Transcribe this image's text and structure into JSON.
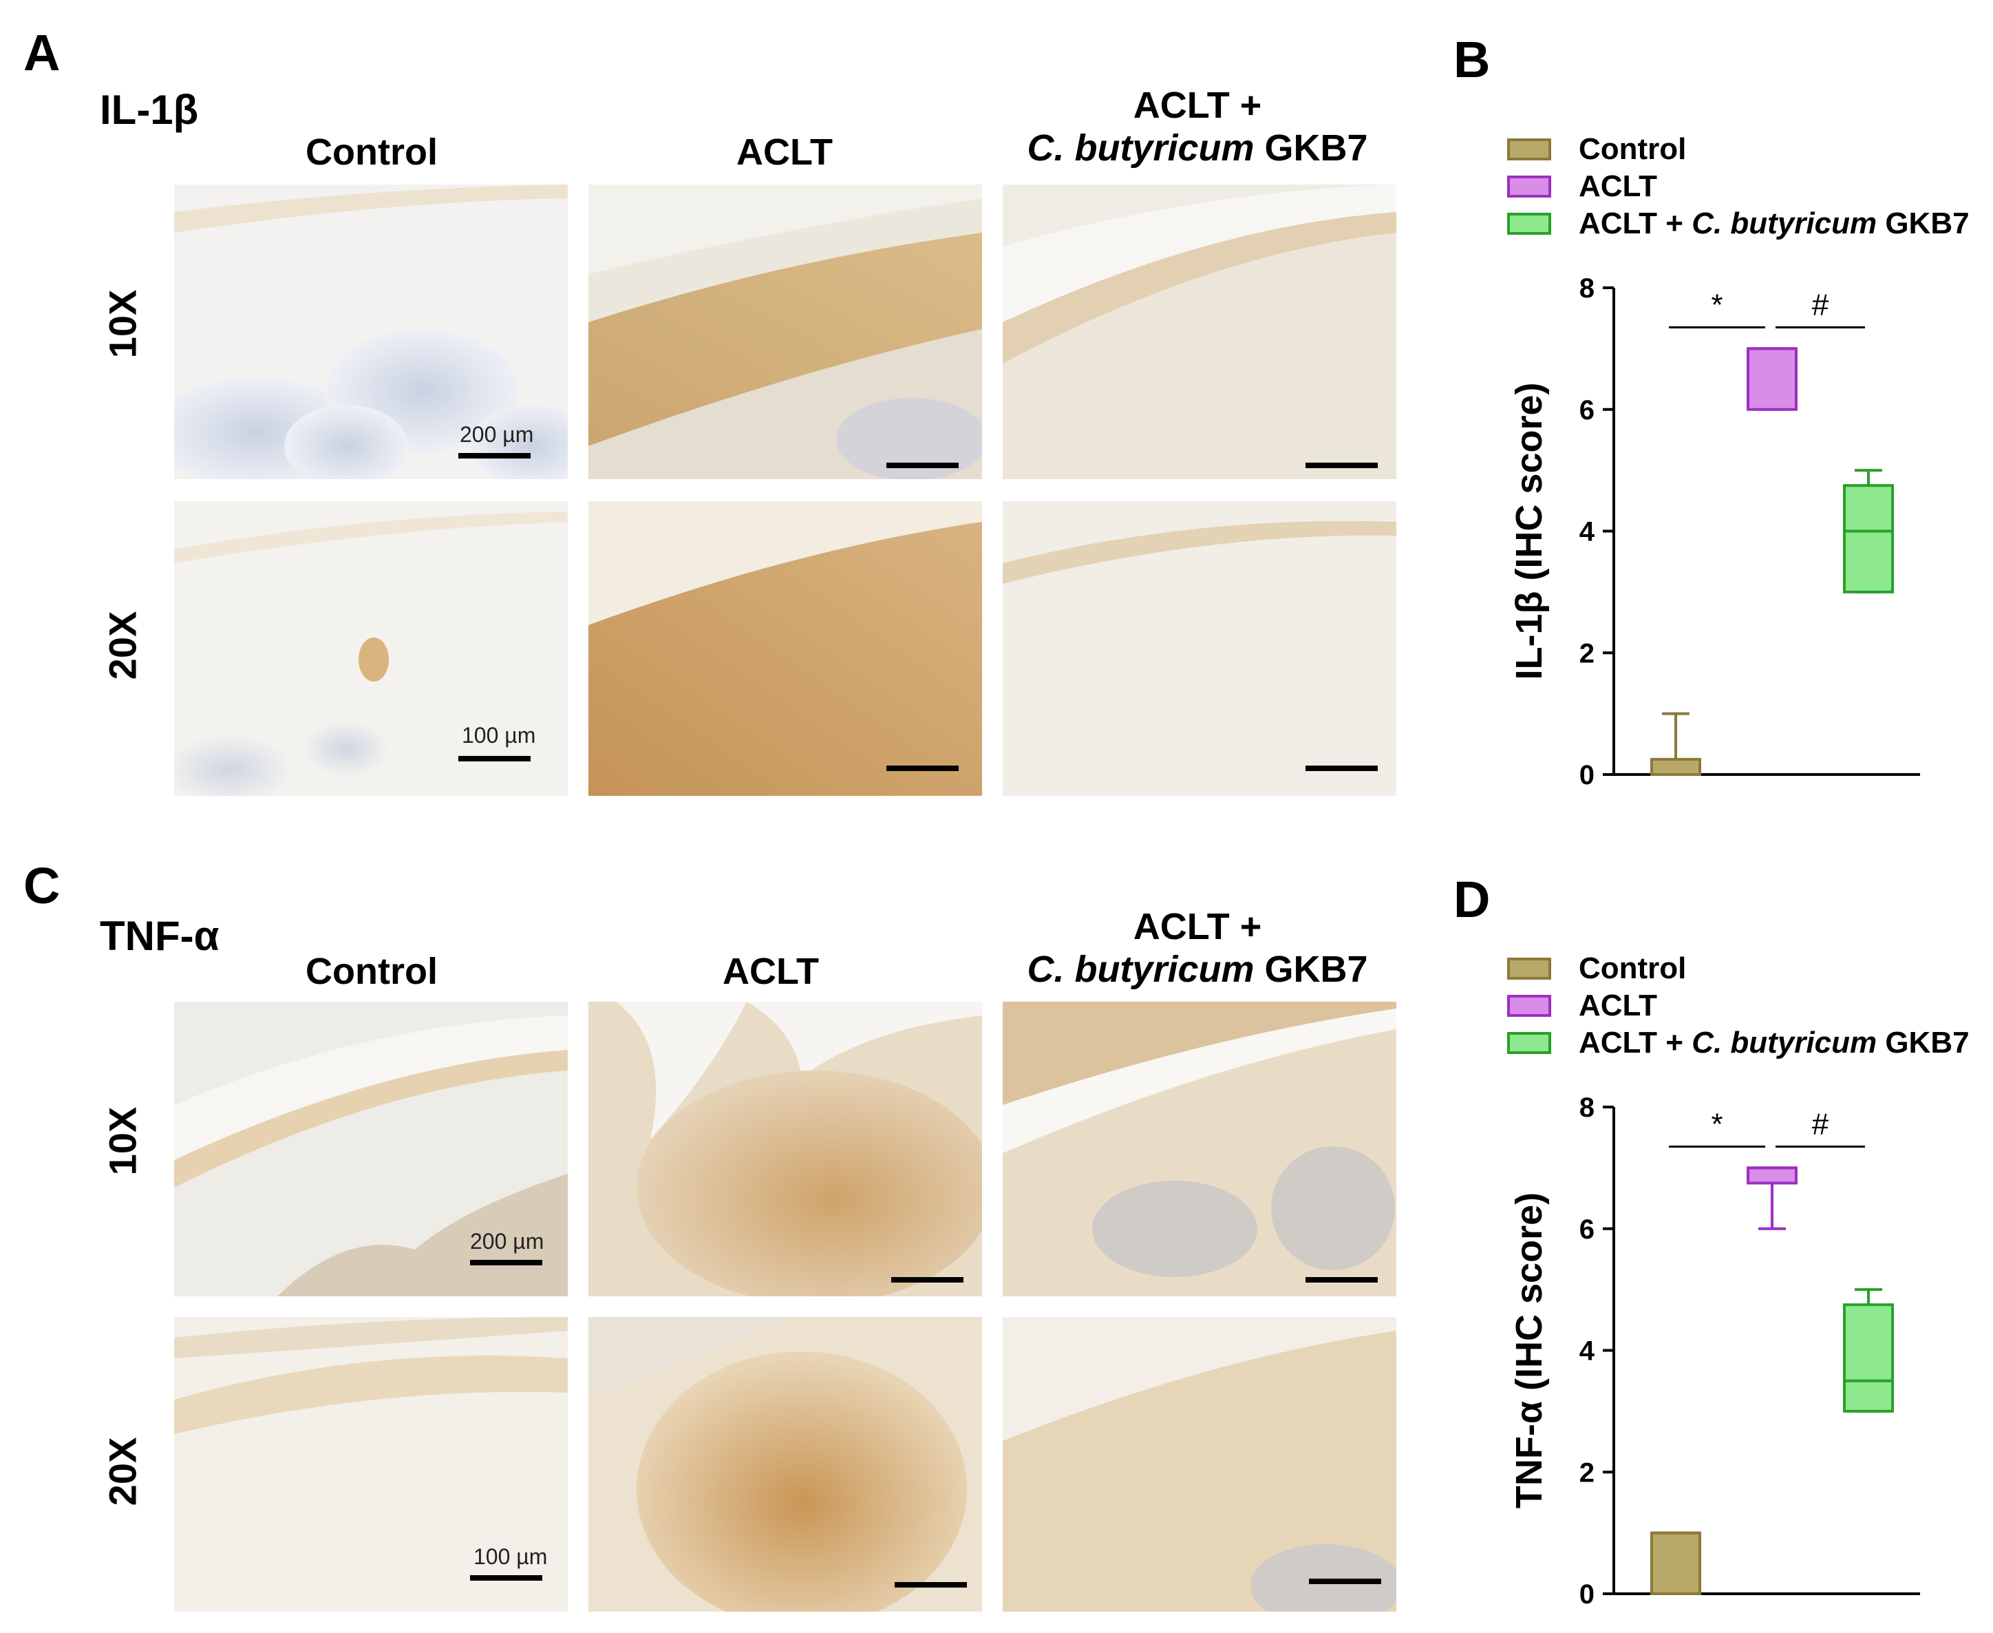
{
  "panels": {
    "A": {
      "letter": "A",
      "marker": "IL-1β",
      "columns": [
        "Control",
        "ACLT",
        "ACLT +",
        "C. butyricum",
        "GKB7"
      ],
      "rows": [
        "10X",
        "20X"
      ],
      "scale_10x": "200 µm",
      "scale_20x": "100 µm"
    },
    "B": {
      "letter": "B"
    },
    "C": {
      "letter": "C",
      "marker": "TNF-α",
      "columns": [
        "Control",
        "ACLT",
        "ACLT +",
        "C. butyricum",
        "GKB7"
      ],
      "rows": [
        "10X",
        "20X"
      ],
      "scale_10x": "200 µm",
      "scale_20x": "100 µm"
    },
    "D": {
      "letter": "D"
    }
  },
  "legend": {
    "items": [
      {
        "label": "Control",
        "color": "#b8a86a",
        "edge": "#8a7a3a"
      },
      {
        "label": "ACLT",
        "color": "#d98ce8",
        "edge": "#9b30c0"
      },
      {
        "label": "ACLT + ",
        "label_italic": "C. butyricum",
        "label_tail": " GKB7",
        "color": "#8ee88e",
        "edge": "#2aa02a"
      }
    ]
  },
  "chart_data": [
    {
      "type": "box",
      "panel": "B",
      "ylabel": "IL-1β (IHC score)",
      "ylim": [
        0,
        8
      ],
      "yticks": [
        "0",
        "2",
        "4",
        "6",
        "8"
      ],
      "groups": [
        "Control",
        "ACLT",
        "ACLT + C. butyricum GKB7"
      ],
      "boxes": [
        {
          "min": 0,
          "q1": 0,
          "median": 0,
          "q3": 0.25,
          "max": 1
        },
        {
          "min": 6,
          "q1": 6,
          "median": 7,
          "q3": 7,
          "max": 7
        },
        {
          "min": 3,
          "q1": 3,
          "median": 4,
          "q3": 4.75,
          "max": 5
        }
      ],
      "significance": [
        {
          "symbol": "*",
          "between": [
            0,
            1
          ]
        },
        {
          "symbol": "#",
          "between": [
            1,
            2
          ]
        }
      ]
    },
    {
      "type": "box",
      "panel": "D",
      "ylabel": "TNF-α (IHC score)",
      "ylim": [
        0,
        8
      ],
      "yticks": [
        "0",
        "2",
        "4",
        "6",
        "8"
      ],
      "groups": [
        "Control",
        "ACLT",
        "ACLT + C. butyricum GKB7"
      ],
      "boxes": [
        {
          "min": 0,
          "q1": 0,
          "median": 1,
          "q3": 1,
          "max": 1
        },
        {
          "min": 6,
          "q1": 6.75,
          "median": 7,
          "q3": 7,
          "max": 7
        },
        {
          "min": 3,
          "q1": 3,
          "median": 3.5,
          "q3": 4.75,
          "max": 5
        }
      ],
      "significance": [
        {
          "symbol": "*",
          "between": [
            0,
            1
          ]
        },
        {
          "symbol": "#",
          "between": [
            1,
            2
          ]
        }
      ]
    }
  ]
}
